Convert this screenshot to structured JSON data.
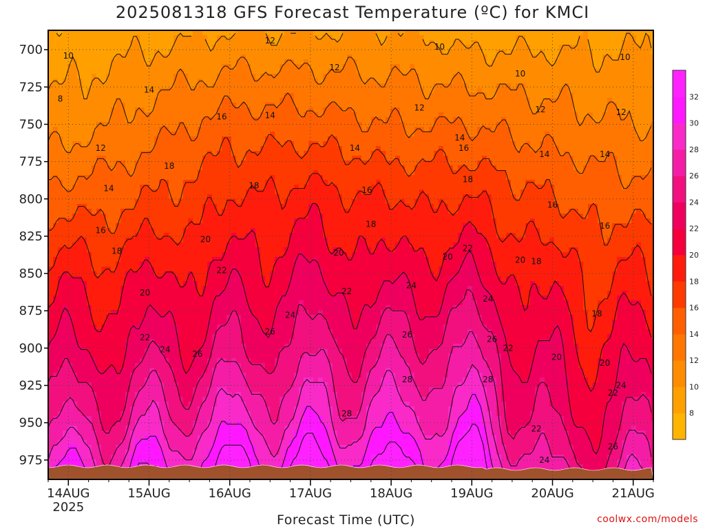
{
  "title": "2025081318 GFS Forecast Temperature (ºC) for KMCI",
  "xlabel": "Forecast Time (UTC)",
  "credit": "coolwx.com/models",
  "chart_data": {
    "type": "heatmap",
    "title": "2025081318 GFS Forecast Temperature (ºC) for KMCI",
    "xlabel": "Forecast Time (UTC)",
    "ylabel": "",
    "x_ticks": [
      "14AUG",
      "15AUG",
      "16AUG",
      "17AUG",
      "18AUG",
      "19AUG",
      "20AUG",
      "21AUG"
    ],
    "x_tick_year": "2025",
    "x_range_days": [
      13.75,
      21.25
    ],
    "y_ticks": [
      700,
      725,
      750,
      775,
      800,
      825,
      850,
      875,
      900,
      925,
      950,
      975
    ],
    "y_range": [
      687,
      988
    ],
    "y_axis_inverted": true,
    "grid": true,
    "colorbar_ticks": [
      8,
      10,
      12,
      14,
      16,
      18,
      20,
      22,
      24,
      26,
      28,
      30,
      32
    ],
    "colorbar_range": [
      6,
      34
    ],
    "colors": [
      "#ffb400",
      "#ffa000",
      "#ff8c00",
      "#ff7700",
      "#ff5f00",
      "#ff3a00",
      "#ff1c0c",
      "#f5003c",
      "#f0005e",
      "#f2107f",
      "#f51da6",
      "#fa2ac9",
      "#ff18ff",
      "#ff22ff"
    ],
    "terrain_color": "#a0522d",
    "contour_levels": [
      8,
      10,
      12,
      14,
      16,
      18,
      20,
      22,
      24,
      26,
      28,
      30,
      32
    ],
    "profiles": [
      {
        "time": "14AUG 00Z",
        "temps_by_pressure": {
          "700": 9,
          "750": 11,
          "800": 15,
          "850": 19,
          "900": 22,
          "950": 26,
          "975": 29
        }
      },
      {
        "time": "15AUG 00Z",
        "temps_by_pressure": {
          "700": 10,
          "750": 13,
          "800": 16,
          "850": 20,
          "900": 23,
          "950": 27,
          "975": 30
        }
      },
      {
        "time": "16AUG 00Z",
        "temps_by_pressure": {
          "700": 11,
          "750": 15,
          "800": 18,
          "850": 21,
          "900": 24,
          "950": 29,
          "975": 32
        }
      },
      {
        "time": "17AUG 00Z",
        "temps_by_pressure": {
          "700": 11,
          "750": 15,
          "800": 19,
          "850": 22,
          "900": 25,
          "950": 29,
          "975": 32
        }
      },
      {
        "time": "18AUG 00Z",
        "temps_by_pressure": {
          "700": 11,
          "750": 14,
          "800": 18,
          "850": 21,
          "900": 25,
          "950": 29,
          "975": 32
        }
      },
      {
        "time": "19AUG 00Z",
        "temps_by_pressure": {
          "700": 10,
          "750": 14,
          "800": 18,
          "850": 22,
          "900": 26,
          "950": 30,
          "975": 33
        }
      },
      {
        "time": "20AUG 00Z",
        "temps_by_pressure": {
          "700": 10,
          "750": 13,
          "800": 16,
          "850": 19,
          "900": 21,
          "950": 23,
          "975": 25
        }
      },
      {
        "time": "21AUG 00Z",
        "temps_by_pressure": {
          "700": 10,
          "750": 12,
          "800": 15,
          "850": 18,
          "900": 21,
          "950": 24,
          "975": 26
        }
      }
    ],
    "contour_labels": [
      {
        "text": "10",
        "t": 14.0,
        "p": 704
      },
      {
        "text": "8",
        "t": 13.9,
        "p": 733
      },
      {
        "text": "12",
        "t": 14.4,
        "p": 766
      },
      {
        "text": "14",
        "t": 14.5,
        "p": 793
      },
      {
        "text": "16",
        "t": 14.4,
        "p": 821
      },
      {
        "text": "18",
        "t": 14.6,
        "p": 835
      },
      {
        "text": "20",
        "t": 14.95,
        "p": 863
      },
      {
        "text": "22",
        "t": 14.95,
        "p": 893
      },
      {
        "text": "24",
        "t": 15.2,
        "p": 901
      },
      {
        "text": "26",
        "t": 15.6,
        "p": 904
      },
      {
        "text": "14",
        "t": 15.0,
        "p": 727
      },
      {
        "text": "16",
        "t": 15.9,
        "p": 745
      },
      {
        "text": "18",
        "t": 15.25,
        "p": 778
      },
      {
        "text": "20",
        "t": 15.7,
        "p": 827
      },
      {
        "text": "22",
        "t": 15.9,
        "p": 848
      },
      {
        "text": "24",
        "t": 16.75,
        "p": 878
      },
      {
        "text": "26",
        "t": 16.5,
        "p": 889
      },
      {
        "text": "12",
        "t": 16.5,
        "p": 694
      },
      {
        "text": "14",
        "t": 16.5,
        "p": 744
      },
      {
        "text": "18",
        "t": 16.3,
        "p": 791
      },
      {
        "text": "12",
        "t": 17.3,
        "p": 712
      },
      {
        "text": "14",
        "t": 17.55,
        "p": 766
      },
      {
        "text": "16",
        "t": 17.7,
        "p": 794
      },
      {
        "text": "18",
        "t": 17.75,
        "p": 817
      },
      {
        "text": "20",
        "t": 17.35,
        "p": 836
      },
      {
        "text": "22",
        "t": 17.45,
        "p": 862
      },
      {
        "text": "24",
        "t": 18.25,
        "p": 858
      },
      {
        "text": "26",
        "t": 18.2,
        "p": 891
      },
      {
        "text": "28",
        "t": 18.2,
        "p": 921
      },
      {
        "text": "28",
        "t": 17.45,
        "p": 944
      },
      {
        "text": "10",
        "t": 18.6,
        "p": 698
      },
      {
        "text": "12",
        "t": 18.35,
        "p": 739
      },
      {
        "text": "14",
        "t": 18.85,
        "p": 759
      },
      {
        "text": "16",
        "t": 18.9,
        "p": 766
      },
      {
        "text": "18",
        "t": 18.95,
        "p": 787
      },
      {
        "text": "20",
        "t": 18.7,
        "p": 839
      },
      {
        "text": "22",
        "t": 18.95,
        "p": 833
      },
      {
        "text": "24",
        "t": 19.2,
        "p": 867
      },
      {
        "text": "26",
        "t": 19.25,
        "p": 894
      },
      {
        "text": "28",
        "t": 19.2,
        "p": 921
      },
      {
        "text": "22",
        "t": 19.45,
        "p": 900
      },
      {
        "text": "20",
        "t": 19.6,
        "p": 841
      },
      {
        "text": "18",
        "t": 19.8,
        "p": 842
      },
      {
        "text": "10",
        "t": 19.6,
        "p": 716
      },
      {
        "text": "12",
        "t": 19.85,
        "p": 740
      },
      {
        "text": "14",
        "t": 19.9,
        "p": 770
      },
      {
        "text": "16",
        "t": 20.0,
        "p": 804
      },
      {
        "text": "20",
        "t": 20.05,
        "p": 906
      },
      {
        "text": "22",
        "t": 19.8,
        "p": 954
      },
      {
        "text": "24",
        "t": 19.9,
        "p": 975
      },
      {
        "text": "18",
        "t": 20.55,
        "p": 877
      },
      {
        "text": "20",
        "t": 20.65,
        "p": 910
      },
      {
        "text": "22",
        "t": 20.75,
        "p": 930
      },
      {
        "text": "24",
        "t": 20.85,
        "p": 925
      },
      {
        "text": "26",
        "t": 20.75,
        "p": 966
      },
      {
        "text": "16",
        "t": 20.65,
        "p": 818
      },
      {
        "text": "14",
        "t": 20.65,
        "p": 770
      },
      {
        "text": "12",
        "t": 20.85,
        "p": 742
      },
      {
        "text": "10",
        "t": 20.9,
        "p": 705
      }
    ]
  }
}
